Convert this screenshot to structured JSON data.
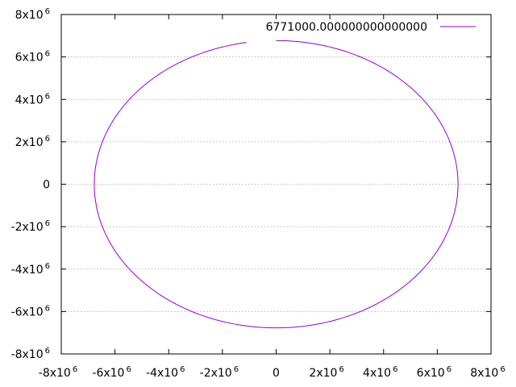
{
  "chart_data": {
    "type": "line",
    "title": "",
    "xlabel": "",
    "ylabel": "",
    "xlim": [
      -8000000,
      8000000
    ],
    "ylim": [
      -8000000,
      8000000
    ],
    "grid": "horizontal dashed",
    "legend": "top-right",
    "x_ticks": [
      {
        "value": -8000000,
        "base": "-8x10",
        "exp": "6"
      },
      {
        "value": -6000000,
        "base": "-6x10",
        "exp": "6"
      },
      {
        "value": -4000000,
        "base": "-4x10",
        "exp": "6"
      },
      {
        "value": -2000000,
        "base": "-2x10",
        "exp": "6"
      },
      {
        "value": 0,
        "base": "0",
        "exp": ""
      },
      {
        "value": 2000000,
        "base": "2x10",
        "exp": "6"
      },
      {
        "value": 4000000,
        "base": "4x10",
        "exp": "6"
      },
      {
        "value": 6000000,
        "base": "6x10",
        "exp": "6"
      },
      {
        "value": 8000000,
        "base": "8x10",
        "exp": "6"
      }
    ],
    "y_ticks": [
      {
        "value": 8000000,
        "base": "8x10",
        "exp": "6"
      },
      {
        "value": 6000000,
        "base": "6x10",
        "exp": "6"
      },
      {
        "value": 4000000,
        "base": "4x10",
        "exp": "6"
      },
      {
        "value": 2000000,
        "base": "2x10",
        "exp": "6"
      },
      {
        "value": 0,
        "base": "0",
        "exp": ""
      },
      {
        "value": -2000000,
        "base": "-2x10",
        "exp": "6"
      },
      {
        "value": -4000000,
        "base": "-4x10",
        "exp": "6"
      },
      {
        "value": -6000000,
        "base": "-6x10",
        "exp": "6"
      },
      {
        "value": -8000000,
        "base": "-8x10",
        "exp": "6"
      }
    ],
    "series": [
      {
        "name": "6771000.000000000000000",
        "color": "#9400d3",
        "radius": 6771000,
        "gap_start_xy": [
          0,
          6771000
        ],
        "gap_end_xy": [
          -1100000,
          6681000
        ],
        "direction": "clockwise from top"
      }
    ]
  }
}
